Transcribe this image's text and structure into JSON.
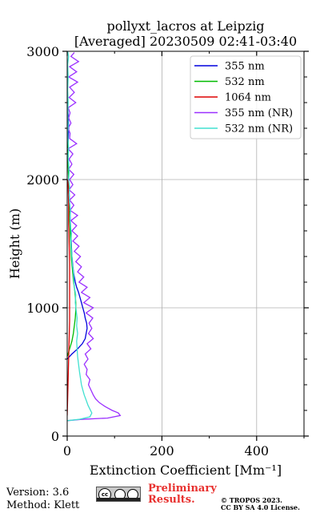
{
  "chart_data": {
    "type": "line",
    "title": "pollyxt_lacros at Leipzig",
    "subtitle": "[Averaged] 20230509 02:41-03:40",
    "xlabel": "Extinction Coefficient [Mm⁻¹]",
    "ylabel": "Height (m)",
    "xlim": [
      0,
      500
    ],
    "ylim": [
      0,
      3000
    ],
    "xticks": [
      0,
      200,
      400
    ],
    "yticks": [
      0,
      1000,
      2000,
      3000
    ],
    "grid": true,
    "legend_position": "top-right",
    "series": [
      {
        "name": "355 nm",
        "color": "#0000dd",
        "points": [
          [
            0,
            600
          ],
          [
            10,
            640
          ],
          [
            22,
            680
          ],
          [
            32,
            720
          ],
          [
            38,
            760
          ],
          [
            40,
            800
          ],
          [
            42,
            840
          ],
          [
            41,
            880
          ],
          [
            38,
            920
          ],
          [
            36,
            960
          ],
          [
            33,
            1000
          ],
          [
            30,
            1040
          ],
          [
            27,
            1080
          ],
          [
            24,
            1120
          ],
          [
            20,
            1160
          ],
          [
            17,
            1200
          ],
          [
            14,
            1260
          ],
          [
            12,
            1320
          ],
          [
            10,
            1400
          ],
          [
            9,
            1480
          ],
          [
            8,
            1560
          ],
          [
            7,
            1640
          ],
          [
            6,
            1720
          ],
          [
            5,
            1800
          ],
          [
            4,
            1900
          ],
          [
            3,
            2000
          ],
          [
            3,
            2100
          ],
          [
            2,
            2200
          ],
          [
            2,
            2300
          ],
          [
            3,
            2400
          ],
          [
            2,
            2500
          ],
          [
            1,
            2600
          ],
          [
            1,
            2640
          ]
        ]
      },
      {
        "name": "532 nm",
        "color": "#00bb00",
        "points": [
          [
            0,
            620
          ],
          [
            5,
            680
          ],
          [
            10,
            740
          ],
          [
            13,
            800
          ],
          [
            15,
            860
          ],
          [
            17,
            920
          ],
          [
            18,
            980
          ],
          [
            18,
            1040
          ],
          [
            17,
            1100
          ],
          [
            15,
            1160
          ],
          [
            13,
            1220
          ],
          [
            11,
            1300
          ],
          [
            9,
            1380
          ],
          [
            8,
            1460
          ],
          [
            7,
            1540
          ],
          [
            6,
            1620
          ],
          [
            5,
            1700
          ],
          [
            4,
            1800
          ],
          [
            3,
            1900
          ],
          [
            3,
            2000
          ],
          [
            2,
            2100
          ],
          [
            2,
            2200
          ],
          [
            2,
            2300
          ]
        ]
      },
      {
        "name": "1064 nm",
        "color": "#dd0000",
        "points": [
          [
            0,
            160
          ],
          [
            1,
            300
          ],
          [
            2,
            450
          ],
          [
            3,
            600
          ],
          [
            4,
            750
          ],
          [
            5,
            900
          ],
          [
            5,
            1050
          ],
          [
            5,
            1200
          ],
          [
            5,
            1350
          ],
          [
            4,
            1500
          ],
          [
            3,
            1650
          ],
          [
            3,
            1800
          ],
          [
            2,
            1950
          ],
          [
            2,
            2000
          ]
        ]
      },
      {
        "name": "355 nm (NR)",
        "color": "#9b30ff",
        "points": [
          [
            0,
            120
          ],
          [
            30,
            130
          ],
          [
            85,
            140
          ],
          [
            112,
            160
          ],
          [
            108,
            180
          ],
          [
            95,
            200
          ],
          [
            80,
            230
          ],
          [
            68,
            260
          ],
          [
            60,
            290
          ],
          [
            55,
            320
          ],
          [
            50,
            360
          ],
          [
            45,
            400
          ],
          [
            48,
            440
          ],
          [
            40,
            480
          ],
          [
            42,
            520
          ],
          [
            36,
            560
          ],
          [
            44,
            600
          ],
          [
            38,
            640
          ],
          [
            50,
            680
          ],
          [
            42,
            720
          ],
          [
            55,
            760
          ],
          [
            45,
            800
          ],
          [
            52,
            840
          ],
          [
            46,
            880
          ],
          [
            54,
            920
          ],
          [
            40,
            960
          ],
          [
            55,
            1000
          ],
          [
            35,
            1040
          ],
          [
            48,
            1080
          ],
          [
            30,
            1120
          ],
          [
            42,
            1160
          ],
          [
            25,
            1200
          ],
          [
            35,
            1240
          ],
          [
            22,
            1280
          ],
          [
            30,
            1320
          ],
          [
            18,
            1360
          ],
          [
            28,
            1400
          ],
          [
            15,
            1440
          ],
          [
            25,
            1480
          ],
          [
            12,
            1520
          ],
          [
            22,
            1560
          ],
          [
            10,
            1600
          ],
          [
            20,
            1640
          ],
          [
            8,
            1680
          ],
          [
            22,
            1720
          ],
          [
            6,
            1760
          ],
          [
            14,
            1800
          ],
          [
            5,
            1840
          ],
          [
            16,
            1880
          ],
          [
            4,
            1920
          ],
          [
            12,
            1960
          ],
          [
            5,
            2000
          ],
          [
            14,
            2040
          ],
          [
            3,
            2080
          ],
          [
            10,
            2120
          ],
          [
            4,
            2160
          ],
          [
            12,
            2200
          ],
          [
            2,
            2240
          ],
          [
            20,
            2280
          ],
          [
            5,
            2320
          ],
          [
            6,
            2360
          ],
          [
            2,
            2400
          ],
          [
            8,
            2440
          ],
          [
            3,
            2480
          ],
          [
            6,
            2520
          ],
          [
            2,
            2560
          ],
          [
            18,
            2600
          ],
          [
            4,
            2640
          ],
          [
            15,
            2680
          ],
          [
            5,
            2720
          ],
          [
            22,
            2760
          ],
          [
            3,
            2800
          ],
          [
            20,
            2840
          ],
          [
            5,
            2880
          ],
          [
            24,
            2920
          ],
          [
            8,
            2960
          ],
          [
            15,
            2990
          ]
        ]
      },
      {
        "name": "532 nm (NR)",
        "color": "#40e0d0",
        "points": [
          [
            0,
            120
          ],
          [
            25,
            130
          ],
          [
            48,
            150
          ],
          [
            52,
            180
          ],
          [
            48,
            210
          ],
          [
            44,
            240
          ],
          [
            40,
            280
          ],
          [
            36,
            320
          ],
          [
            33,
            360
          ],
          [
            30,
            400
          ],
          [
            28,
            450
          ],
          [
            26,
            500
          ],
          [
            24,
            560
          ],
          [
            22,
            620
          ],
          [
            21,
            680
          ],
          [
            20,
            740
          ],
          [
            22,
            800
          ],
          [
            20,
            860
          ],
          [
            21,
            920
          ],
          [
            19,
            980
          ],
          [
            17,
            1040
          ],
          [
            18,
            1100
          ],
          [
            15,
            1160
          ],
          [
            14,
            1220
          ],
          [
            13,
            1280
          ],
          [
            11,
            1340
          ],
          [
            10,
            1400
          ],
          [
            9,
            1460
          ],
          [
            8,
            1520
          ],
          [
            9,
            1580
          ],
          [
            7,
            1640
          ],
          [
            6,
            1700
          ],
          [
            7,
            1760
          ],
          [
            5,
            1820
          ],
          [
            4,
            1880
          ],
          [
            5,
            1940
          ],
          [
            3,
            2000
          ],
          [
            4,
            2060
          ],
          [
            3,
            2120
          ],
          [
            2,
            2180
          ],
          [
            3,
            2240
          ],
          [
            2,
            2300
          ],
          [
            1,
            2360
          ],
          [
            2,
            2420
          ],
          [
            1,
            2500
          ],
          [
            2,
            2600
          ],
          [
            1,
            2700
          ],
          [
            2,
            2800
          ],
          [
            1,
            2900
          ],
          [
            3,
            2960
          ],
          [
            1,
            3000
          ]
        ]
      }
    ]
  },
  "footer": {
    "version": "Version: 3.6",
    "method": "Method: Klett",
    "preliminary_line1": "Preliminary",
    "preliminary_line2": "Results.",
    "copyright_line1": "© TROPOS 2023.",
    "copyright_line2": "CC BY SA 4.0 License."
  },
  "colors": {
    "grid": "#b0b0b0",
    "preliminary": "#e8312f"
  }
}
